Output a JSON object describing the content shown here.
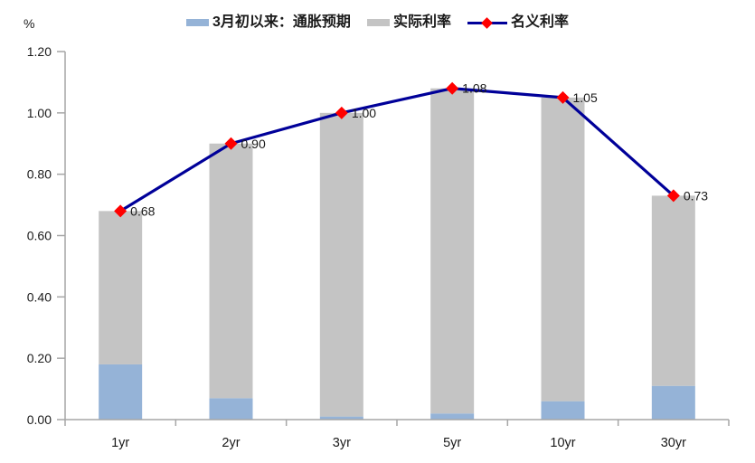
{
  "chart": {
    "y_axis_unit": "%",
    "legend": [
      {
        "key": "inflation-expectation",
        "label": "3月初以来：通胀预期",
        "marker": "square",
        "color": "#95B3D7"
      },
      {
        "key": "real-rate",
        "label": "实际利率",
        "marker": "square",
        "color": "#C4C4C4"
      },
      {
        "key": "nominal-rate",
        "label": "名义利率",
        "marker": "line-diamond",
        "color": "#000099",
        "marker_color": "#FF0000"
      }
    ]
  },
  "chart_data": {
    "type": "bar",
    "subtype": "stacked-bars-with-line-overlay",
    "title": "",
    "xlabel": "",
    "ylabel": "%",
    "categories": [
      "1yr",
      "2yr",
      "3yr",
      "5yr",
      "10yr",
      "30yr"
    ],
    "series": [
      {
        "name": "3月初以来：通胀预期",
        "type": "bar",
        "stacked": true,
        "color": "#95B3D7",
        "values": [
          0.18,
          0.07,
          0.01,
          0.02,
          0.06,
          0.11
        ]
      },
      {
        "name": "实际利率",
        "type": "bar",
        "stacked": true,
        "color": "#C4C4C4",
        "values": [
          0.5,
          0.83,
          0.99,
          1.06,
          0.99,
          0.62
        ]
      },
      {
        "name": "名义利率",
        "type": "line",
        "color": "#000099",
        "marker": "diamond",
        "marker_color": "#FF0000",
        "values": [
          0.68,
          0.9,
          1.0,
          1.08,
          1.05,
          0.73
        ],
        "data_labels": [
          "0.68",
          "0.90",
          "1.00",
          "1.08",
          "1.05",
          "0.73"
        ]
      }
    ],
    "ylim": [
      0,
      1.2
    ],
    "ytick_step": 0.2,
    "ytick_labels": [
      "0.00",
      "0.20",
      "0.40",
      "0.60",
      "0.80",
      "1.00",
      "1.20"
    ],
    "grid": false,
    "legend_position": "top",
    "colors": {
      "axis": "#A6A6A6",
      "text": "#1A1A1A"
    }
  }
}
